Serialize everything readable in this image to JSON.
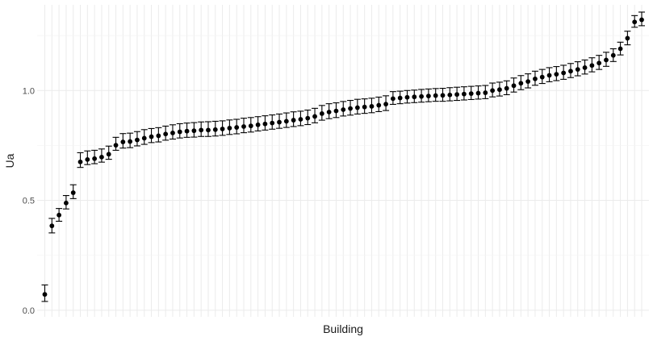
{
  "chart_data": {
    "type": "scatter",
    "xlabel": "Building",
    "ylabel": "Ua",
    "ylim": [
      -0.03,
      1.39
    ],
    "y_ticks": [
      0.0,
      0.5,
      1.0
    ],
    "y_tick_labels": [
      "0.0",
      "0.5",
      "1.0"
    ],
    "x_tick_labels_shown": false,
    "grid": true,
    "legend": "none",
    "series": [
      {
        "marker": "point-with-errorbar",
        "color": "#000000",
        "values": [
          0.072,
          0.384,
          0.433,
          0.488,
          0.535,
          0.675,
          0.686,
          0.69,
          0.697,
          0.71,
          0.751,
          0.766,
          0.768,
          0.775,
          0.783,
          0.79,
          0.794,
          0.802,
          0.807,
          0.812,
          0.815,
          0.817,
          0.82,
          0.82,
          0.822,
          0.825,
          0.829,
          0.832,
          0.836,
          0.839,
          0.844,
          0.848,
          0.852,
          0.856,
          0.86,
          0.865,
          0.869,
          0.874,
          0.882,
          0.895,
          0.902,
          0.907,
          0.913,
          0.918,
          0.922,
          0.925,
          0.928,
          0.933,
          0.938,
          0.963,
          0.966,
          0.969,
          0.971,
          0.973,
          0.975,
          0.977,
          0.978,
          0.98,
          0.982,
          0.984,
          0.986,
          0.988,
          0.99,
          1.0,
          1.004,
          1.01,
          1.022,
          1.033,
          1.041,
          1.053,
          1.061,
          1.069,
          1.074,
          1.08,
          1.088,
          1.096,
          1.104,
          1.114,
          1.125,
          1.139,
          1.16,
          1.19,
          1.238,
          1.312,
          1.322
        ],
        "err_low": [
          0.04,
          0.352,
          0.405,
          0.461,
          0.508,
          0.65,
          0.663,
          0.667,
          0.674,
          0.687,
          0.728,
          0.738,
          0.74,
          0.748,
          0.755,
          0.763,
          0.766,
          0.774,
          0.779,
          0.784,
          0.787,
          0.788,
          0.791,
          0.791,
          0.793,
          0.796,
          0.8,
          0.803,
          0.808,
          0.811,
          0.816,
          0.82,
          0.824,
          0.828,
          0.832,
          0.836,
          0.84,
          0.845,
          0.853,
          0.865,
          0.872,
          0.877,
          0.884,
          0.888,
          0.893,
          0.896,
          0.899,
          0.904,
          0.909,
          0.937,
          0.94,
          0.943,
          0.945,
          0.947,
          0.949,
          0.951,
          0.951,
          0.953,
          0.955,
          0.957,
          0.959,
          0.961,
          0.963,
          0.971,
          0.975,
          0.981,
          0.993,
          1.004,
          1.012,
          1.024,
          1.032,
          1.04,
          1.045,
          1.051,
          1.059,
          1.067,
          1.075,
          1.085,
          1.096,
          1.11,
          1.132,
          1.162,
          1.208,
          1.288,
          1.295
        ],
        "err_high": [
          0.115,
          0.418,
          0.463,
          0.522,
          0.571,
          0.717,
          0.725,
          0.728,
          0.734,
          0.747,
          0.787,
          0.804,
          0.806,
          0.813,
          0.822,
          0.827,
          0.831,
          0.838,
          0.844,
          0.849,
          0.852,
          0.854,
          0.857,
          0.858,
          0.86,
          0.862,
          0.866,
          0.869,
          0.874,
          0.877,
          0.881,
          0.885,
          0.889,
          0.893,
          0.898,
          0.903,
          0.906,
          0.911,
          0.919,
          0.932,
          0.94,
          0.944,
          0.95,
          0.955,
          0.96,
          0.962,
          0.965,
          0.97,
          0.976,
          0.995,
          0.997,
          1.0,
          1.002,
          1.005,
          1.007,
          1.009,
          1.01,
          1.013,
          1.015,
          1.017,
          1.019,
          1.021,
          1.023,
          1.034,
          1.038,
          1.044,
          1.057,
          1.068,
          1.076,
          1.088,
          1.096,
          1.104,
          1.109,
          1.115,
          1.123,
          1.131,
          1.139,
          1.149,
          1.16,
          1.174,
          1.19,
          1.22,
          1.27,
          1.341,
          1.357
        ]
      }
    ]
  }
}
